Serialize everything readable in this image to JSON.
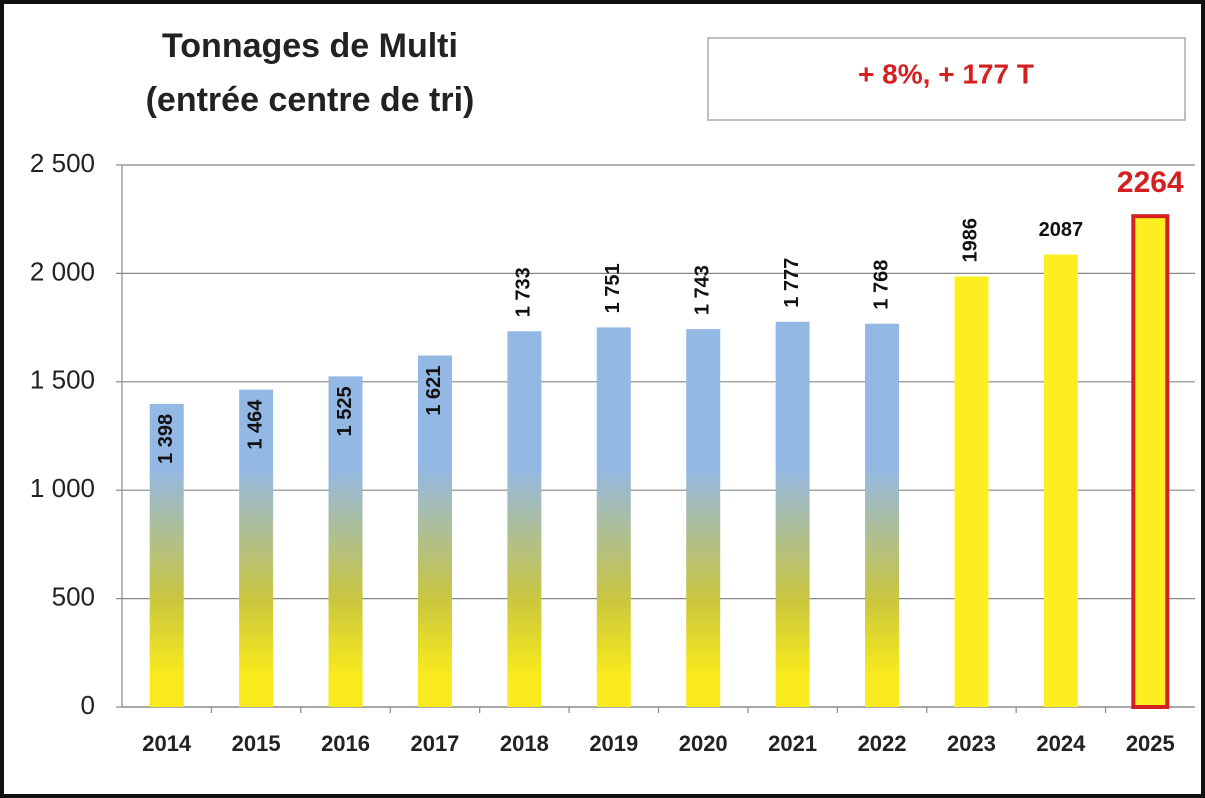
{
  "chart_data": {
    "type": "bar",
    "title": "Tonnages de Multi",
    "subtitle": "(entrée centre de tri)",
    "annotation": "+ 8%,  + 177 T",
    "categories": [
      "2014",
      "2015",
      "2016",
      "2017",
      "2018",
      "2019",
      "2020",
      "2021",
      "2022",
      "2023",
      "2024",
      "2025"
    ],
    "values": [
      1398,
      1464,
      1525,
      1621,
      1733,
      1751,
      1743,
      1777,
      1768,
      1986,
      2087,
      2264
    ],
    "value_labels": [
      "1 398",
      "1 464",
      "1 525",
      "1 621",
      "1 733",
      "1 751",
      "1 743",
      "1 777",
      "1 768",
      "1986",
      "2087",
      "2264"
    ],
    "colors": [
      "gradient",
      "gradient",
      "gradient",
      "gradient",
      "gradient",
      "gradient",
      "gradient",
      "gradient",
      "gradient",
      "#fcee21",
      "#fcee21",
      "#fcee21"
    ],
    "gradient_colors": [
      "#94b8e4",
      "#c9c640",
      "#f8ea1c"
    ],
    "highlight_color": "#d42020",
    "ylim": [
      0,
      2500
    ],
    "yticks": [
      0,
      500,
      {
        "value": 1000,
        "label": "1 000"
      },
      {
        "value": 1500,
        "label": "1 500"
      },
      {
        "value": 2000,
        "label": "2 000"
      },
      {
        "value": 2500,
        "label": "2 500"
      }
    ],
    "grid": true
  }
}
